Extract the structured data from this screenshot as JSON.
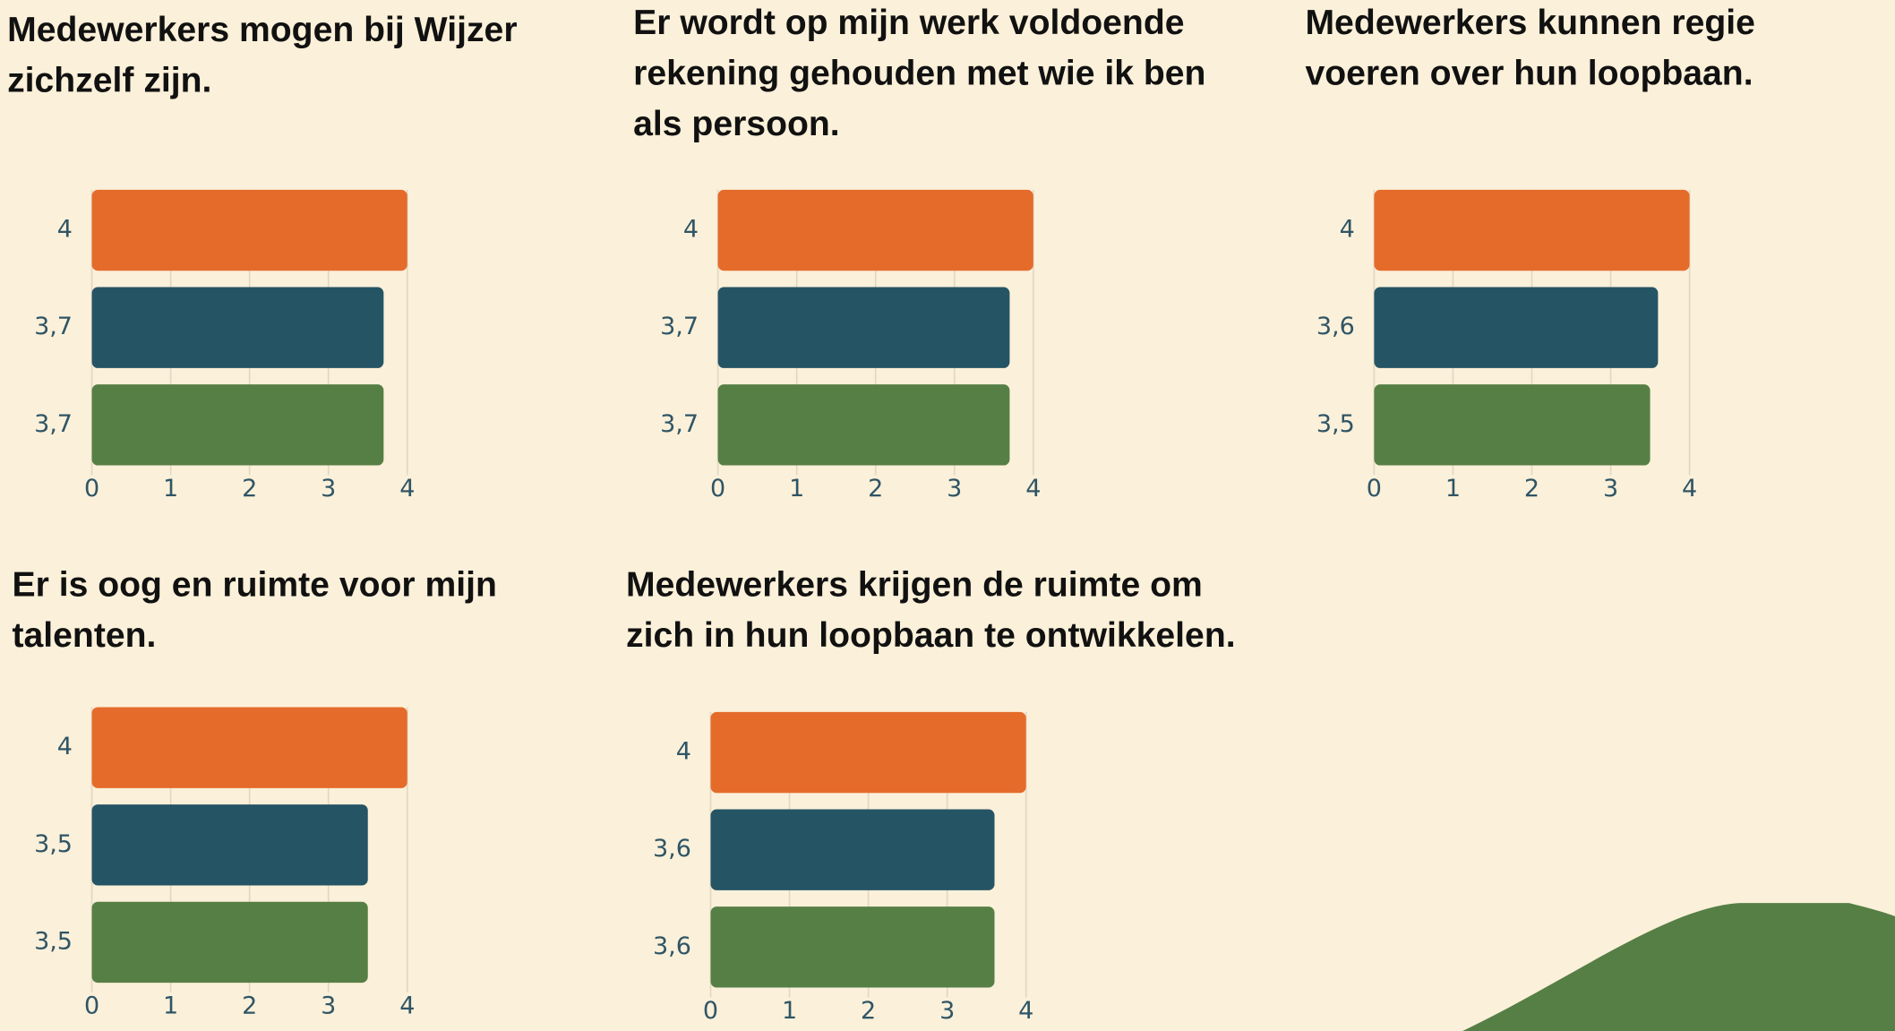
{
  "chart_data": [
    {
      "type": "bar",
      "title": "Medewerkers mogen bij Wijzer zichzelf zijn.",
      "values": [
        4,
        3.7,
        3.7
      ],
      "value_labels": [
        "4",
        "3,7",
        "3,7"
      ],
      "colors": [
        "#e56b2b",
        "#255465",
        "#567f45"
      ],
      "xlim": [
        0,
        4
      ],
      "xticks": [
        0,
        1,
        2,
        3,
        4
      ],
      "grid": true
    },
    {
      "type": "bar",
      "title": "Er wordt op mijn werk voldoende rekening gehouden met wie ik ben als persoon.",
      "values": [
        4,
        3.7,
        3.7
      ],
      "value_labels": [
        "4",
        "3,7",
        "3,7"
      ],
      "colors": [
        "#e56b2b",
        "#255465",
        "#567f45"
      ],
      "xlim": [
        0,
        4
      ],
      "xticks": [
        0,
        1,
        2,
        3,
        4
      ],
      "grid": true
    },
    {
      "type": "bar",
      "title": "Medewerkers kunnen regie voeren over hun loopbaan.",
      "values": [
        4,
        3.6,
        3.5
      ],
      "value_labels": [
        "4",
        "3,6",
        "3,5"
      ],
      "colors": [
        "#e56b2b",
        "#255465",
        "#567f45"
      ],
      "xlim": [
        0,
        4
      ],
      "xticks": [
        0,
        1,
        2,
        3,
        4
      ],
      "grid": true
    },
    {
      "type": "bar",
      "title": "Er is oog en ruimte voor mijn talenten.",
      "values": [
        4,
        3.5,
        3.5
      ],
      "value_labels": [
        "4",
        "3,5",
        "3,5"
      ],
      "colors": [
        "#e56b2b",
        "#255465",
        "#567f45"
      ],
      "xlim": [
        0,
        4
      ],
      "xticks": [
        0,
        1,
        2,
        3,
        4
      ],
      "grid": true
    },
    {
      "type": "bar",
      "title": "Medewerkers krijgen de ruimte om zich in hun loopbaan te ontwikkelen.",
      "values": [
        4,
        3.6,
        3.6
      ],
      "value_labels": [
        "4",
        "3,6",
        "3,6"
      ],
      "colors": [
        "#e56b2b",
        "#255465",
        "#567f45"
      ],
      "xlim": [
        0,
        4
      ],
      "xticks": [
        0,
        1,
        2,
        3,
        4
      ],
      "grid": true
    }
  ]
}
